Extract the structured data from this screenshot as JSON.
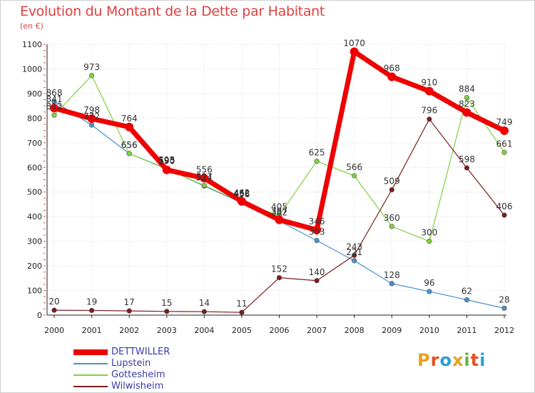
{
  "title": "Evolution du Montant de la Dette par Habitant",
  "subtitle": "(en €)",
  "logo": {
    "text": "Proxiti",
    "letters": [
      "P",
      "r",
      "o",
      "x",
      "i",
      "t",
      "i"
    ],
    "colors": [
      "#e8a020",
      "#e85020",
      "#2aa0d8",
      "#e8a020",
      "#6ab040",
      "#e85020",
      "#2aa0d8"
    ]
  },
  "chart_data": {
    "type": "line",
    "x": [
      "2000",
      "2001",
      "2002",
      "2003",
      "2004",
      "2005",
      "2006",
      "2007",
      "2008",
      "2009",
      "2010",
      "2011",
      "2012"
    ],
    "ylim": [
      0,
      1100
    ],
    "yticks": [
      0,
      100,
      200,
      300,
      400,
      500,
      600,
      700,
      800,
      900,
      1000,
      1100
    ],
    "grid": true,
    "legend_position": "bottom-left",
    "series": [
      {
        "name": "DETTWILLER",
        "color": "#ee0000",
        "values": [
          841,
          798,
          764,
          590,
          556,
          462,
          387,
          346,
          1070,
          968,
          910,
          823,
          749
        ],
        "labels": [
          "841",
          "798",
          "764",
          "590",
          "556",
          "462",
          "387",
          "346",
          "1070",
          "968",
          "910",
          "823",
          "749"
        ]
      },
      {
        "name": "Lupstein",
        "color": "#4a90d0",
        "values": [
          868,
          772,
          656,
          595,
          524,
          456,
          382,
          303,
          221,
          128,
          96,
          62,
          28
        ],
        "labels": [
          "868",
          "772",
          "656",
          "595",
          "524",
          "456",
          "382",
          "303",
          "221",
          "128",
          "96",
          "62",
          "28"
        ]
      },
      {
        "name": "Gottesheim",
        "color": "#80d040",
        "values": [
          812,
          973,
          656,
          593,
          527,
          458,
          405,
          625,
          566,
          360,
          300,
          884,
          661
        ],
        "labels": [
          "812",
          "973",
          "656",
          "593",
          "527",
          "458",
          "405",
          "625",
          "566",
          "360",
          "300",
          "884",
          "661"
        ]
      },
      {
        "name": "Wilwisheim",
        "color": "#7a1c1c",
        "values": [
          20,
          19,
          17,
          15,
          14,
          11,
          152,
          140,
          243,
          509,
          796,
          598,
          406
        ],
        "labels": [
          "20",
          "19",
          "17",
          "15",
          "14",
          "11",
          "152",
          "140",
          "243",
          "509",
          "796",
          "598",
          "406"
        ]
      }
    ]
  }
}
